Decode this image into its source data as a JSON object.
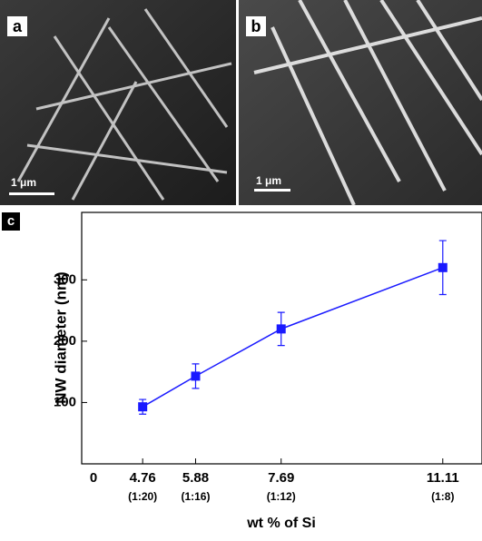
{
  "figure": {
    "panels": [
      {
        "label": "a",
        "scale_bar": "1 μm"
      },
      {
        "label": "b",
        "scale_bar": "1 μm"
      }
    ]
  },
  "chart_data": {
    "type": "line",
    "panel_label": "c",
    "x_label": "wt % of Si",
    "y_label": "NW diameter (nm)",
    "x_origin_label": "0",
    "x": [
      4.76,
      5.88,
      7.69,
      11.11
    ],
    "xtick_sublabels": [
      "(1:20)",
      "(1:16)",
      "(1:12)",
      "(1:8)"
    ],
    "series": [
      {
        "color": "#1a1aff",
        "values": [
          93,
          143,
          220,
          320
        ],
        "errors": [
          12,
          20,
          27,
          44
        ]
      }
    ],
    "xlim": [
      3.47,
      11.94
    ],
    "ylim": [
      0,
      410
    ],
    "xticks": [
      4.76,
      5.88,
      7.69,
      11.11
    ],
    "yticks": [
      100,
      200,
      300
    ]
  }
}
